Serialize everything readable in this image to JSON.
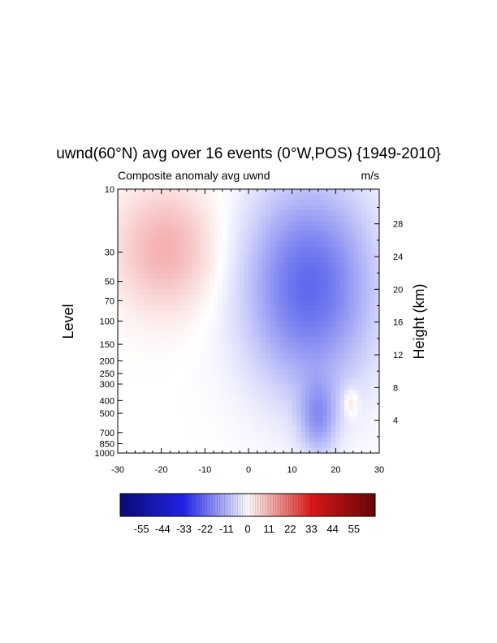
{
  "chart_data": {
    "type": "heatmap",
    "title": "uwnd(60°N) avg over 16 events (0°W,POS) {1949-2010}",
    "subtitle_left": "Composite anomaly avg uwnd",
    "subtitle_right": "m/s",
    "xlabel": "",
    "ylabel": "Level",
    "ylabel_right": "Height (km)",
    "x_ticks": [
      -30,
      -20,
      -10,
      0,
      10,
      20,
      30
    ],
    "xlim": [
      -30,
      30
    ],
    "y_ticks_left": [
      10,
      30,
      50,
      70,
      100,
      150,
      200,
      250,
      300,
      400,
      500,
      700,
      850,
      1000
    ],
    "ylim": [
      1000,
      10
    ],
    "y_scale": "log-pressure",
    "y_ticks_right": [
      4,
      8,
      12,
      16,
      20,
      24,
      28
    ],
    "colorbar_ticks": [
      -55,
      -44,
      -33,
      -22,
      -11,
      0,
      11,
      22,
      33,
      44,
      55
    ],
    "colormap": "blue-white-red",
    "colors": {
      "min": "#0b0b78",
      "neg": "#2323ee",
      "zero": "#ffffff",
      "pos": "#e01a1a",
      "max": "#6b0606"
    },
    "grid": false,
    "features": [
      {
        "sign": "positive",
        "x_range": [
          -30,
          -8
        ],
        "p_range": [
          10,
          80
        ],
        "peak_m_s": 6
      },
      {
        "sign": "negative",
        "x_range": [
          2,
          30
        ],
        "p_range": [
          10,
          300
        ],
        "peak_m_s": -12,
        "peak_x": 14
      },
      {
        "sign": "negative",
        "x_range": [
          12,
          20
        ],
        "p_range": [
          300,
          1000
        ],
        "peak_m_s": -7
      },
      {
        "sign": "positive",
        "x_range": [
          22,
          25
        ],
        "p_range": [
          330,
          520
        ],
        "peak_m_s": 4
      }
    ]
  }
}
